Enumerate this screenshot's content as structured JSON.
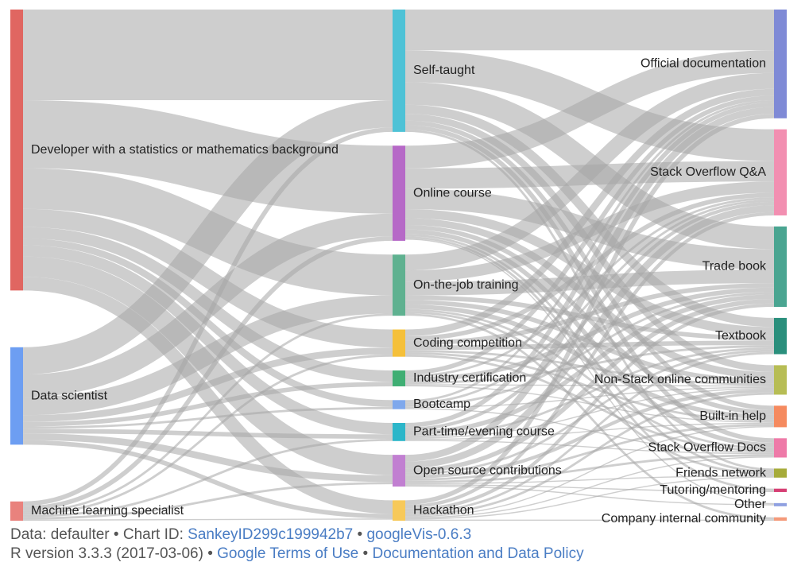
{
  "chart_data": {
    "type": "sankey",
    "columns": [
      [
        {
          "id": "dev",
          "label": "Developer with a statistics or mathematics background",
          "color": "#e06661"
        },
        {
          "id": "ds",
          "label": "Data scientist",
          "color": "#6d9ef2"
        },
        {
          "id": "ml",
          "label": "Machine learning specialist",
          "color": "#e9827d"
        }
      ],
      [
        {
          "id": "self",
          "label": "Self-taught",
          "color": "#4ec2d6"
        },
        {
          "id": "online",
          "label": "Online course",
          "color": "#b669c7"
        },
        {
          "id": "ojt",
          "label": "On-the-job training",
          "color": "#5fb190"
        },
        {
          "id": "coding",
          "label": "Coding competition",
          "color": "#f5c03a"
        },
        {
          "id": "cert",
          "label": "Industry certification",
          "color": "#3fae73"
        },
        {
          "id": "boot",
          "label": "Bootcamp",
          "color": "#7fa8ec"
        },
        {
          "id": "part",
          "label": "Part-time/evening course",
          "color": "#2cb6c9"
        },
        {
          "id": "oss",
          "label": "Open source contributions",
          "color": "#c17fd1"
        },
        {
          "id": "hack",
          "label": "Hackathon",
          "color": "#f7c95a"
        }
      ],
      [
        {
          "id": "offdoc",
          "label": "Official documentation",
          "color": "#7f8ad6"
        },
        {
          "id": "soqa",
          "label": "Stack Overflow Q&A",
          "color": "#f28fb1"
        },
        {
          "id": "trade",
          "label": "Trade book",
          "color": "#4aa591"
        },
        {
          "id": "textbook",
          "label": "Textbook",
          "color": "#2a8f7c"
        },
        {
          "id": "nonstack",
          "label": "Non-Stack online communities",
          "color": "#b7bd55"
        },
        {
          "id": "builtin",
          "label": "Built-in help",
          "color": "#f58a5f"
        },
        {
          "id": "sodocs",
          "label": "Stack Overflow Docs",
          "color": "#ee7aa8"
        },
        {
          "id": "friends",
          "label": "Friends network",
          "color": "#a6ab3a"
        },
        {
          "id": "tutor",
          "label": "Tutoring/mentoring",
          "color": "#d63f74"
        },
        {
          "id": "other",
          "label": "Other",
          "color": "#8fa0e0"
        },
        {
          "id": "company",
          "label": "Company internal community",
          "color": "#f49a7a"
        }
      ]
    ],
    "links": [
      {
        "source": "dev",
        "target": "self",
        "value": 40
      },
      {
        "source": "dev",
        "target": "online",
        "value": 30
      },
      {
        "source": "dev",
        "target": "ojt",
        "value": 18
      },
      {
        "source": "dev",
        "target": "coding",
        "value": 8
      },
      {
        "source": "dev",
        "target": "cert",
        "value": 5
      },
      {
        "source": "dev",
        "target": "boot",
        "value": 3
      },
      {
        "source": "dev",
        "target": "part",
        "value": 5
      },
      {
        "source": "dev",
        "target": "oss",
        "value": 9
      },
      {
        "source": "dev",
        "target": "hack",
        "value": 6
      },
      {
        "source": "ds",
        "target": "self",
        "value": 12
      },
      {
        "source": "ds",
        "target": "online",
        "value": 10
      },
      {
        "source": "ds",
        "target": "ojt",
        "value": 8
      },
      {
        "source": "ds",
        "target": "coding",
        "value": 3
      },
      {
        "source": "ds",
        "target": "cert",
        "value": 2
      },
      {
        "source": "ds",
        "target": "boot",
        "value": 1
      },
      {
        "source": "ds",
        "target": "part",
        "value": 2
      },
      {
        "source": "ds",
        "target": "oss",
        "value": 3
      },
      {
        "source": "ds",
        "target": "hack",
        "value": 2
      },
      {
        "source": "ml",
        "target": "self",
        "value": 2
      },
      {
        "source": "ml",
        "target": "online",
        "value": 2
      },
      {
        "source": "ml",
        "target": "ojt",
        "value": 1
      },
      {
        "source": "ml",
        "target": "coding",
        "value": 1
      },
      {
        "source": "ml",
        "target": "part",
        "value": 1
      },
      {
        "source": "ml",
        "target": "oss",
        "value": 1
      },
      {
        "source": "ml",
        "target": "hack",
        "value": 0.5
      },
      {
        "source": "self",
        "target": "offdoc",
        "value": 18
      },
      {
        "source": "self",
        "target": "soqa",
        "value": 14
      },
      {
        "source": "self",
        "target": "trade",
        "value": 10
      },
      {
        "source": "self",
        "target": "textbook",
        "value": 4
      },
      {
        "source": "self",
        "target": "nonstack",
        "value": 3
      },
      {
        "source": "self",
        "target": "builtin",
        "value": 2
      },
      {
        "source": "self",
        "target": "sodocs",
        "value": 2
      },
      {
        "source": "self",
        "target": "friends",
        "value": 1
      },
      {
        "source": "online",
        "target": "offdoc",
        "value": 10
      },
      {
        "source": "online",
        "target": "soqa",
        "value": 9
      },
      {
        "source": "online",
        "target": "trade",
        "value": 9
      },
      {
        "source": "online",
        "target": "textbook",
        "value": 4
      },
      {
        "source": "online",
        "target": "nonstack",
        "value": 3
      },
      {
        "source": "online",
        "target": "builtin",
        "value": 2
      },
      {
        "source": "online",
        "target": "sodocs",
        "value": 2
      },
      {
        "source": "online",
        "target": "friends",
        "value": 1
      },
      {
        "source": "online",
        "target": "tutor",
        "value": 1
      },
      {
        "source": "online",
        "target": "other",
        "value": 0.5
      },
      {
        "source": "ojt",
        "target": "offdoc",
        "value": 7
      },
      {
        "source": "ojt",
        "target": "soqa",
        "value": 5
      },
      {
        "source": "ojt",
        "target": "trade",
        "value": 6
      },
      {
        "source": "ojt",
        "target": "textbook",
        "value": 2
      },
      {
        "source": "ojt",
        "target": "nonstack",
        "value": 2
      },
      {
        "source": "ojt",
        "target": "builtin",
        "value": 2
      },
      {
        "source": "ojt",
        "target": "sodocs",
        "value": 1
      },
      {
        "source": "ojt",
        "target": "friends",
        "value": 1
      },
      {
        "source": "ojt",
        "target": "company",
        "value": 1
      },
      {
        "source": "coding",
        "target": "offdoc",
        "value": 3
      },
      {
        "source": "coding",
        "target": "soqa",
        "value": 2
      },
      {
        "source": "coding",
        "target": "trade",
        "value": 2
      },
      {
        "source": "coding",
        "target": "textbook",
        "value": 2
      },
      {
        "source": "coding",
        "target": "nonstack",
        "value": 1
      },
      {
        "source": "coding",
        "target": "builtin",
        "value": 1
      },
      {
        "source": "coding",
        "target": "sodocs",
        "value": 1
      },
      {
        "source": "cert",
        "target": "offdoc",
        "value": 2
      },
      {
        "source": "cert",
        "target": "soqa",
        "value": 1
      },
      {
        "source": "cert",
        "target": "trade",
        "value": 2
      },
      {
        "source": "cert",
        "target": "textbook",
        "value": 1
      },
      {
        "source": "cert",
        "target": "nonstack",
        "value": 0.5
      },
      {
        "source": "cert",
        "target": "builtin",
        "value": 0.5
      },
      {
        "source": "boot",
        "target": "offdoc",
        "value": 1
      },
      {
        "source": "boot",
        "target": "soqa",
        "value": 1
      },
      {
        "source": "boot",
        "target": "trade",
        "value": 1
      },
      {
        "source": "boot",
        "target": "nonstack",
        "value": 0.5
      },
      {
        "source": "boot",
        "target": "sodocs",
        "value": 0.5
      },
      {
        "source": "part",
        "target": "offdoc",
        "value": 2
      },
      {
        "source": "part",
        "target": "soqa",
        "value": 1.5
      },
      {
        "source": "part",
        "target": "trade",
        "value": 2
      },
      {
        "source": "part",
        "target": "textbook",
        "value": 1
      },
      {
        "source": "part",
        "target": "nonstack",
        "value": 0.5
      },
      {
        "source": "part",
        "target": "builtin",
        "value": 0.5
      },
      {
        "source": "part",
        "target": "sodocs",
        "value": 0.5
      },
      {
        "source": "oss",
        "target": "offdoc",
        "value": 3
      },
      {
        "source": "oss",
        "target": "soqa",
        "value": 3
      },
      {
        "source": "oss",
        "target": "trade",
        "value": 2
      },
      {
        "source": "oss",
        "target": "textbook",
        "value": 1
      },
      {
        "source": "oss",
        "target": "nonstack",
        "value": 1.5
      },
      {
        "source": "oss",
        "target": "builtin",
        "value": 1
      },
      {
        "source": "oss",
        "target": "sodocs",
        "value": 1
      },
      {
        "source": "oss",
        "target": "friends",
        "value": 0.5
      },
      {
        "source": "oss",
        "target": "tutor",
        "value": 0.5
      },
      {
        "source": "oss",
        "target": "other",
        "value": 0.5
      },
      {
        "source": "hack",
        "target": "offdoc",
        "value": 2
      },
      {
        "source": "hack",
        "target": "soqa",
        "value": 1.5
      },
      {
        "source": "hack",
        "target": "trade",
        "value": 1.5
      },
      {
        "source": "hack",
        "target": "textbook",
        "value": 1
      },
      {
        "source": "hack",
        "target": "nonstack",
        "value": 1
      },
      {
        "source": "hack",
        "target": "builtin",
        "value": 0.5
      },
      {
        "source": "hack",
        "target": "sodocs",
        "value": 0.5
      },
      {
        "source": "hack",
        "target": "friends",
        "value": 0.5
      },
      {
        "source": "hack",
        "target": "company",
        "value": 0.5
      }
    ]
  },
  "footer": {
    "line1_prefix": "Data: defaulter • Chart ID: ",
    "chart_id": "SankeyID299c199942b7",
    "separator": " • ",
    "googlevis": "googleVis-0.6.3",
    "line2_prefix": "R version 3.3.3 (2017-03-06) • ",
    "terms": "Google Terms of Use",
    "policy": "Documentation and Data Policy"
  }
}
